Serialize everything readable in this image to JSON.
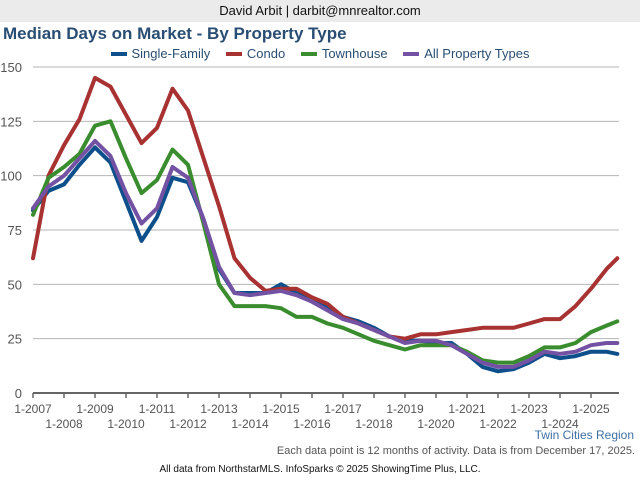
{
  "header": {
    "agent": "David Arbit | darbit@mnrealtor.com"
  },
  "region_label": "Twin Cities Region",
  "note": "Each data point is 12 months of activity. Data is from December 17, 2025.",
  "footer": "All data from NorthstarMLS. InfoSparks © 2025 ShowingTime Plus, LLC.",
  "chart_data": {
    "type": "line",
    "title": "Median Days on Market - By Property Type",
    "xlabel": "",
    "ylabel": "",
    "ylim": [
      0,
      150
    ],
    "yticks": [
      0,
      25,
      50,
      75,
      100,
      125,
      150
    ],
    "grid": true,
    "legend_position": "top-center",
    "xticks_row1": [
      "1-2007",
      "1-2009",
      "1-2011",
      "1-2013",
      "1-2015",
      "1-2017",
      "1-2019",
      "1-2021",
      "1-2023",
      "1-2025"
    ],
    "xticks_row2": [
      "1-2008",
      "1-2010",
      "1-2012",
      "1-2014",
      "1-2016",
      "1-2018",
      "1-2020",
      "1-2022",
      "1-2024"
    ],
    "x_start_year": 2007,
    "x_end_year": 2025.85,
    "x": [
      2007.0,
      2007.5,
      2008.0,
      2008.5,
      2009.0,
      2009.5,
      2010.0,
      2010.5,
      2011.0,
      2011.5,
      2012.0,
      2012.5,
      2013.0,
      2013.5,
      2014.0,
      2014.5,
      2015.0,
      2015.5,
      2016.0,
      2016.5,
      2017.0,
      2017.5,
      2018.0,
      2018.5,
      2019.0,
      2019.5,
      2020.0,
      2020.5,
      2021.0,
      2021.5,
      2022.0,
      2022.5,
      2023.0,
      2023.5,
      2024.0,
      2024.5,
      2025.0,
      2025.5,
      2025.85
    ],
    "series": [
      {
        "name": "Single-Family",
        "color": "#0d4f8b",
        "values": [
          84,
          93,
          96,
          105,
          113,
          106,
          88,
          70,
          81,
          99,
          97,
          80,
          57,
          46,
          46,
          46,
          50,
          46,
          44,
          40,
          35,
          33,
          30,
          26,
          24,
          24,
          23,
          23,
          18,
          12,
          10,
          11,
          14,
          18,
          16,
          17,
          19,
          19,
          18
        ]
      },
      {
        "name": "Condo",
        "color": "#a83232",
        "values": [
          62,
          100,
          114,
          126,
          145,
          141,
          128,
          115,
          122,
          140,
          130,
          108,
          86,
          62,
          53,
          47,
          48,
          48,
          44,
          41,
          35,
          32,
          29,
          26,
          25,
          27,
          27,
          28,
          29,
          30,
          30,
          30,
          32,
          34,
          34,
          40,
          48,
          57,
          62
        ]
      },
      {
        "name": "Townhouse",
        "color": "#3a8d2e",
        "values": [
          82,
          99,
          104,
          110,
          123,
          125,
          108,
          92,
          98,
          112,
          105,
          78,
          50,
          40,
          40,
          40,
          39,
          35,
          35,
          32,
          30,
          27,
          24,
          22,
          20,
          22,
          22,
          22,
          19,
          15,
          14,
          14,
          17,
          21,
          21,
          23,
          28,
          31,
          33
        ]
      },
      {
        "name": "All Property Types",
        "color": "#7452a3",
        "values": [
          85,
          95,
          100,
          108,
          116,
          109,
          92,
          78,
          85,
          104,
          99,
          80,
          58,
          46,
          45,
          46,
          47,
          45,
          42,
          38,
          34,
          32,
          29,
          26,
          23,
          24,
          24,
          22,
          18,
          14,
          12,
          12,
          15,
          19,
          18,
          19,
          22,
          23,
          23
        ]
      }
    ]
  }
}
